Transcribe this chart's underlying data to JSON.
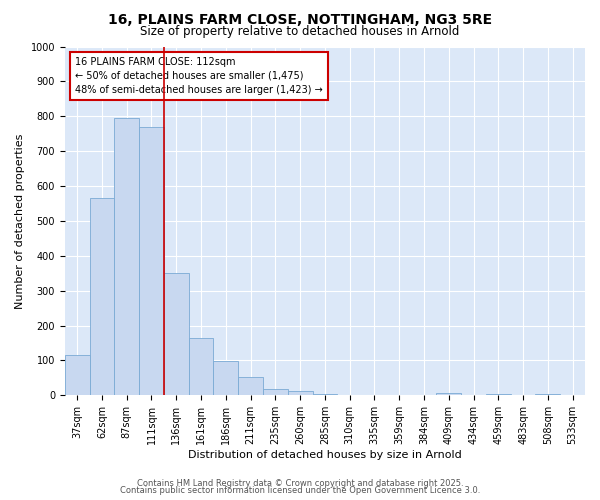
{
  "title_line1": "16, PLAINS FARM CLOSE, NOTTINGHAM, NG3 5RE",
  "title_line2": "Size of property relative to detached houses in Arnold",
  "xlabel": "Distribution of detached houses by size in Arnold",
  "ylabel": "Number of detached properties",
  "bar_values": [
    115,
    565,
    795,
    770,
    350,
    165,
    98,
    52,
    18,
    12,
    5,
    2,
    0,
    0,
    0,
    8,
    0,
    5,
    0,
    5,
    0
  ],
  "bar_labels": [
    "37sqm",
    "62sqm",
    "87sqm",
    "111sqm",
    "136sqm",
    "161sqm",
    "186sqm",
    "211sqm",
    "235sqm",
    "260sqm",
    "285sqm",
    "310sqm",
    "335sqm",
    "359sqm",
    "384sqm",
    "409sqm",
    "434sqm",
    "459sqm",
    "483sqm",
    "508sqm",
    "533sqm"
  ],
  "bar_color": "#c8d8f0",
  "bar_edge_color": "#7aaad4",
  "plot_bg_color": "#dce8f8",
  "fig_bg_color": "#ffffff",
  "grid_color": "#ffffff",
  "vline_x": 3.5,
  "vline_color": "#cc0000",
  "annotation_text": "16 PLAINS FARM CLOSE: 112sqm\n← 50% of detached houses are smaller (1,475)\n48% of semi-detached houses are larger (1,423) →",
  "annotation_box_edgecolor": "#cc0000",
  "annotation_box_facecolor": "#ffffff",
  "ylim": [
    0,
    1000
  ],
  "yticks": [
    0,
    100,
    200,
    300,
    400,
    500,
    600,
    700,
    800,
    900,
    1000
  ],
  "footer_line1": "Contains HM Land Registry data © Crown copyright and database right 2025.",
  "footer_line2": "Contains public sector information licensed under the Open Government Licence 3.0.",
  "title1_fontsize": 10,
  "title2_fontsize": 8.5,
  "axis_label_fontsize": 8,
  "tick_fontsize": 7,
  "annotation_fontsize": 7,
  "footer_fontsize": 6
}
